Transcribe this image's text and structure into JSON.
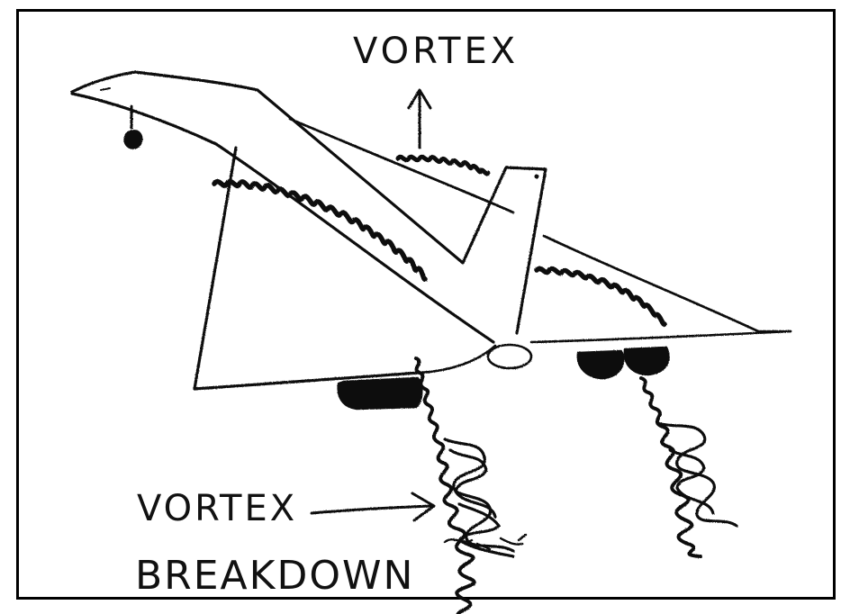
{
  "labels": {
    "vortex_top": "VORTEX",
    "vortex_bottom": "VORTEX",
    "breakdown": "BREAKDOWN"
  },
  "colors": {
    "ink": "#111111",
    "paper": "#ffffff",
    "frame": "#000000"
  },
  "icons": {
    "vortex_arrow_up": "arrow-up-icon",
    "vortex_arrow_right": "arrow-right-icon"
  }
}
